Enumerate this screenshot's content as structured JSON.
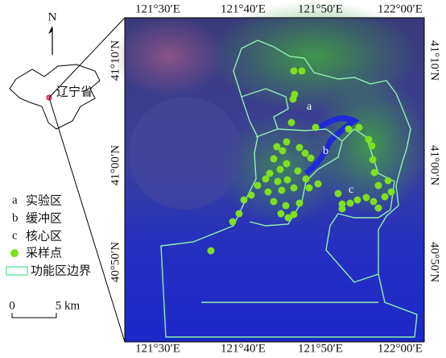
{
  "north": "N",
  "province": "辽宁省",
  "legend": {
    "items": [
      {
        "key": "a",
        "label": "实验区"
      },
      {
        "key": "b",
        "label": "缓冲区"
      },
      {
        "key": "c",
        "label": "核心区"
      }
    ],
    "points": "采样点",
    "boundary": "功能区边界"
  },
  "scale": {
    "start": "0",
    "end": "5 km"
  },
  "lon_labels": [
    "121°30′E",
    "121°40′E",
    "121°50′E",
    "122°00′E"
  ],
  "lat_labels": [
    "41°10′N",
    "41°00′N",
    "40°50′N"
  ],
  "zones": [
    "a",
    "b",
    "c"
  ]
}
